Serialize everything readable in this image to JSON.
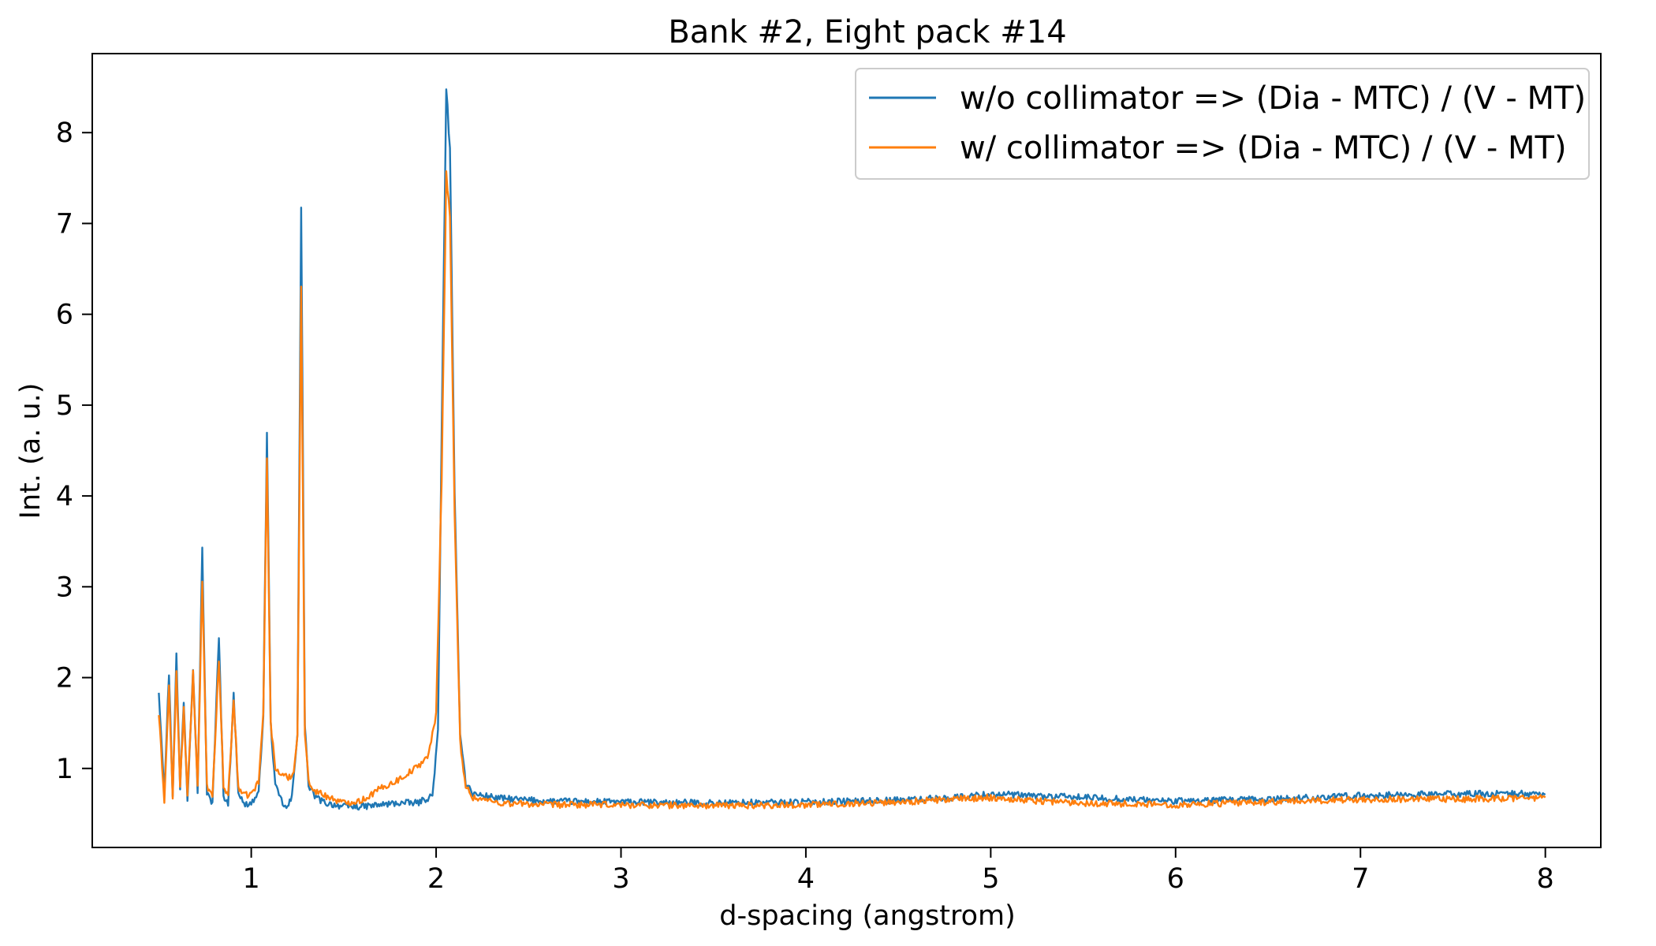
{
  "chart_data": {
    "type": "line",
    "title": "Bank #2, Eight pack #14",
    "xlabel": "d-spacing (angstrom)",
    "ylabel": "Int. (a. u.)",
    "xlim": [
      0.14,
      8.3
    ],
    "ylim": [
      0.13,
      8.87
    ],
    "xticks": [
      "1",
      "2",
      "3",
      "4",
      "5",
      "6",
      "7",
      "8"
    ],
    "yticks": [
      "1",
      "2",
      "3",
      "4",
      "5",
      "6",
      "7",
      "8"
    ],
    "grid": false,
    "legend_position": "top-right",
    "series": [
      {
        "name": "w/o collimator => (Dia - MTC) / (V - MT)",
        "color": "#1f77b4",
        "points": [
          [
            0.5,
            1.85
          ],
          [
            0.53,
            0.75
          ],
          [
            0.555,
            2.05
          ],
          [
            0.575,
            0.7
          ],
          [
            0.595,
            2.25
          ],
          [
            0.615,
            0.78
          ],
          [
            0.635,
            1.75
          ],
          [
            0.655,
            0.65
          ],
          [
            0.685,
            2.12
          ],
          [
            0.71,
            0.75
          ],
          [
            0.735,
            3.4
          ],
          [
            0.76,
            0.72
          ],
          [
            0.79,
            0.62
          ],
          [
            0.825,
            2.43
          ],
          [
            0.85,
            0.7
          ],
          [
            0.875,
            0.62
          ],
          [
            0.905,
            1.8
          ],
          [
            0.93,
            0.75
          ],
          [
            0.96,
            0.6
          ],
          [
            1.0,
            0.62
          ],
          [
            1.04,
            0.72
          ],
          [
            1.065,
            1.6
          ],
          [
            1.085,
            4.7
          ],
          [
            1.105,
            1.5
          ],
          [
            1.13,
            0.8
          ],
          [
            1.17,
            0.62
          ],
          [
            1.19,
            0.55
          ],
          [
            1.22,
            0.68
          ],
          [
            1.25,
            1.4
          ],
          [
            1.27,
            7.15
          ],
          [
            1.29,
            1.5
          ],
          [
            1.31,
            0.8
          ],
          [
            1.35,
            0.68
          ],
          [
            1.4,
            0.62
          ],
          [
            1.5,
            0.58
          ],
          [
            1.6,
            0.58
          ],
          [
            1.7,
            0.6
          ],
          [
            1.8,
            0.62
          ],
          [
            1.9,
            0.62
          ],
          [
            1.98,
            0.7
          ],
          [
            2.01,
            1.4
          ],
          [
            2.035,
            5.5
          ],
          [
            2.055,
            8.5
          ],
          [
            2.075,
            7.8
          ],
          [
            2.1,
            4.0
          ],
          [
            2.13,
            1.4
          ],
          [
            2.16,
            0.85
          ],
          [
            2.2,
            0.72
          ],
          [
            2.35,
            0.67
          ],
          [
            2.6,
            0.64
          ],
          [
            3.0,
            0.63
          ],
          [
            3.5,
            0.62
          ],
          [
            4.0,
            0.63
          ],
          [
            4.5,
            0.65
          ],
          [
            4.8,
            0.68
          ],
          [
            5.0,
            0.72
          ],
          [
            5.2,
            0.7
          ],
          [
            5.5,
            0.68
          ],
          [
            6.0,
            0.64
          ],
          [
            6.5,
            0.66
          ],
          [
            7.0,
            0.7
          ],
          [
            7.5,
            0.72
          ],
          [
            8.0,
            0.72
          ]
        ]
      },
      {
        "name": "w/ collimator => (Dia - MTC) / (V - MT)",
        "color": "#ff7f0e",
        "points": [
          [
            0.5,
            1.6
          ],
          [
            0.53,
            0.65
          ],
          [
            0.555,
            1.9
          ],
          [
            0.575,
            0.68
          ],
          [
            0.595,
            2.05
          ],
          [
            0.615,
            0.8
          ],
          [
            0.635,
            1.65
          ],
          [
            0.655,
            0.68
          ],
          [
            0.685,
            2.05
          ],
          [
            0.71,
            0.8
          ],
          [
            0.735,
            3.05
          ],
          [
            0.76,
            0.8
          ],
          [
            0.79,
            0.68
          ],
          [
            0.825,
            2.2
          ],
          [
            0.85,
            0.8
          ],
          [
            0.875,
            0.7
          ],
          [
            0.905,
            1.75
          ],
          [
            0.93,
            0.8
          ],
          [
            0.96,
            0.7
          ],
          [
            1.0,
            0.72
          ],
          [
            1.04,
            0.85
          ],
          [
            1.065,
            1.6
          ],
          [
            1.085,
            4.45
          ],
          [
            1.105,
            1.5
          ],
          [
            1.13,
            1.0
          ],
          [
            1.17,
            0.92
          ],
          [
            1.2,
            0.9
          ],
          [
            1.23,
            0.95
          ],
          [
            1.25,
            1.4
          ],
          [
            1.27,
            6.3
          ],
          [
            1.29,
            1.4
          ],
          [
            1.31,
            0.85
          ],
          [
            1.35,
            0.75
          ],
          [
            1.4,
            0.7
          ],
          [
            1.5,
            0.62
          ],
          [
            1.6,
            0.65
          ],
          [
            1.7,
            0.78
          ],
          [
            1.8,
            0.88
          ],
          [
            1.9,
            1.02
          ],
          [
            1.96,
            1.15
          ],
          [
            2.0,
            1.6
          ],
          [
            2.03,
            4.2
          ],
          [
            2.055,
            7.55
          ],
          [
            2.075,
            7.1
          ],
          [
            2.1,
            3.8
          ],
          [
            2.13,
            1.3
          ],
          [
            2.16,
            0.8
          ],
          [
            2.2,
            0.68
          ],
          [
            2.35,
            0.62
          ],
          [
            2.6,
            0.6
          ],
          [
            3.0,
            0.6
          ],
          [
            3.5,
            0.59
          ],
          [
            4.0,
            0.6
          ],
          [
            4.5,
            0.63
          ],
          [
            4.8,
            0.66
          ],
          [
            5.0,
            0.68
          ],
          [
            5.2,
            0.65
          ],
          [
            5.5,
            0.62
          ],
          [
            6.0,
            0.6
          ],
          [
            6.5,
            0.63
          ],
          [
            7.0,
            0.66
          ],
          [
            7.5,
            0.66
          ],
          [
            8.0,
            0.68
          ]
        ]
      }
    ]
  }
}
